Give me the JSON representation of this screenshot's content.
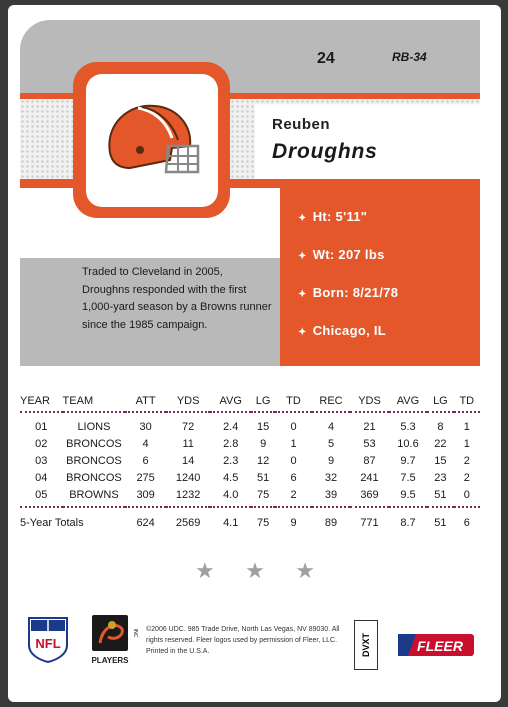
{
  "card": {
    "number": "24",
    "code": "RB-34",
    "first_name": "Reuben",
    "last_name": "Droughns",
    "vitals": [
      {
        "label": "Ht: 5'11\""
      },
      {
        "label": "Wt: 207 lbs"
      },
      {
        "label": "Born: 8/21/78"
      },
      {
        "label": "Chicago, IL"
      }
    ],
    "bio": "Traded to Cleveland in 2005, Droughns responded with the first 1,000-yard season by a Browns runner since the 1985 campaign.",
    "colors": {
      "orange": "#e4572a",
      "gray": "#b9b9b9",
      "dot_line": "#7a2a5a"
    }
  },
  "stats_table": {
    "headers": [
      "YEAR",
      "TEAM",
      "ATT",
      "YDS",
      "AVG",
      "LG",
      "TD",
      "REC",
      "YDS",
      "AVG",
      "LG",
      "TD"
    ],
    "rows": [
      [
        "01",
        "LIONS",
        "30",
        "72",
        "2.4",
        "15",
        "0",
        "4",
        "21",
        "5.3",
        "8",
        "1"
      ],
      [
        "02",
        "BRONCOS",
        "4",
        "11",
        "2.8",
        "9",
        "1",
        "5",
        "53",
        "10.6",
        "22",
        "1"
      ],
      [
        "03",
        "BRONCOS",
        "6",
        "14",
        "2.3",
        "12",
        "0",
        "9",
        "87",
        "9.7",
        "15",
        "2"
      ],
      [
        "04",
        "BRONCOS",
        "275",
        "1240",
        "4.5",
        "51",
        "6",
        "32",
        "241",
        "7.5",
        "23",
        "2"
      ],
      [
        "05",
        "BROWNS",
        "309",
        "1232",
        "4.0",
        "75",
        "2",
        "39",
        "369",
        "9.5",
        "51",
        "0"
      ]
    ],
    "totals": [
      "5-Year Totals",
      "624",
      "2569",
      "4.1",
      "75",
      "9",
      "89",
      "771",
      "8.7",
      "51",
      "6"
    ]
  },
  "footer": {
    "copyright": "©2006 UDC. 985 Trade Drive, North Las Vegas, NV 89030. All rights reserved. Fleer logos used by permission of Fleer, LLC. Printed in the U.S.A.",
    "dvxt": "DVXT",
    "nfl_logo_text": "NFL",
    "players_logo_text": "PLAYERS",
    "players_inc": "INC",
    "fleer_logo_text": "FLEER"
  },
  "icons": {
    "helmet": "browns-helmet-icon",
    "stars": "star-icon"
  }
}
